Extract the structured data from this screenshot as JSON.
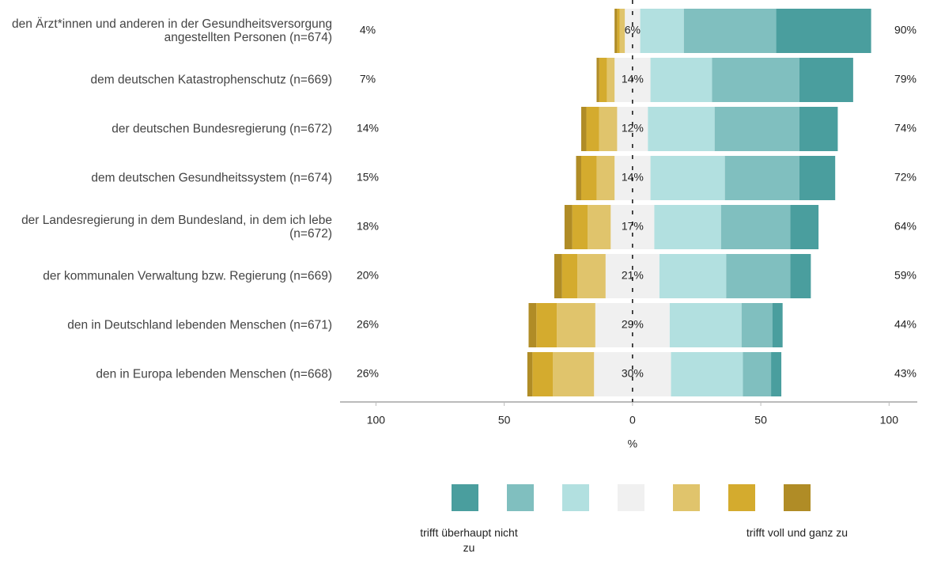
{
  "chart_data": {
    "type": "diverging_bar",
    "categories": [
      "den Ärzt*innen und anderen in der Gesundheitsversorgung angestellten Personen (n=674)",
      "dem deutschen Katastrophenschutz (n=669)",
      "der deutschen Bundesregierung (n=672)",
      "dem deutschen Gesundheitssystem (n=674)",
      "der Landesregierung in dem Bundesland, in dem ich lebe (n=672)",
      "der kommunalen Verwaltung bzw. Regierung (n=669)",
      "den in Deutschland lebenden Menschen (n=671)",
      "den in Europa lebenden Menschen (n=668)"
    ],
    "series": [
      {
        "name": "trifft überhaupt nicht zu",
        "color": "#4a9e9e",
        "side": "positive",
        "values": [
          37,
          21,
          15,
          14,
          11,
          8,
          4,
          4
        ]
      },
      {
        "color": "#80bfbf",
        "side": "positive",
        "values": [
          36,
          34,
          33,
          29,
          27,
          25,
          12,
          11
        ]
      },
      {
        "color": "#b2e0e0",
        "side": "positive",
        "values": [
          17,
          24,
          26,
          29,
          26,
          26,
          28,
          28
        ]
      },
      {
        "color": "#f0f0f0",
        "side": "neutral",
        "values": [
          6,
          14,
          12,
          14,
          17,
          21,
          29,
          30
        ],
        "value_labels": [
          "6%",
          "14%",
          "12%",
          "14%",
          "17%",
          "21%",
          "29%",
          "30%"
        ]
      },
      {
        "color": "#e0c46c",
        "side": "negative",
        "values": [
          2,
          3,
          7,
          7,
          9,
          11,
          15,
          16
        ]
      },
      {
        "color": "#d4ab2e",
        "side": "negative",
        "values": [
          1,
          3,
          5,
          6,
          6,
          6,
          8,
          8
        ]
      },
      {
        "name": "trifft voll und ganz zu",
        "color": "#b08c26",
        "side": "negative",
        "values": [
          1,
          1,
          2,
          2,
          3,
          3,
          3,
          2
        ]
      }
    ],
    "left_totals": {
      "values": [
        4,
        7,
        14,
        15,
        18,
        20,
        26,
        26
      ],
      "value_labels": [
        "4%",
        "7%",
        "14%",
        "15%",
        "18%",
        "20%",
        "26%",
        "26%"
      ]
    },
    "right_totals": {
      "values": [
        90,
        79,
        74,
        72,
        64,
        59,
        44,
        43
      ],
      "value_labels": [
        "90%",
        "79%",
        "74%",
        "72%",
        "64%",
        "59%",
        "44%",
        "43%"
      ]
    },
    "x_label": "%",
    "xlim": [
      -114,
      111
    ],
    "xticks": [
      {
        "value": -100,
        "label": "100"
      },
      {
        "value": -50,
        "label": "50"
      },
      0,
      50,
      100
    ],
    "legend": "bottom"
  }
}
